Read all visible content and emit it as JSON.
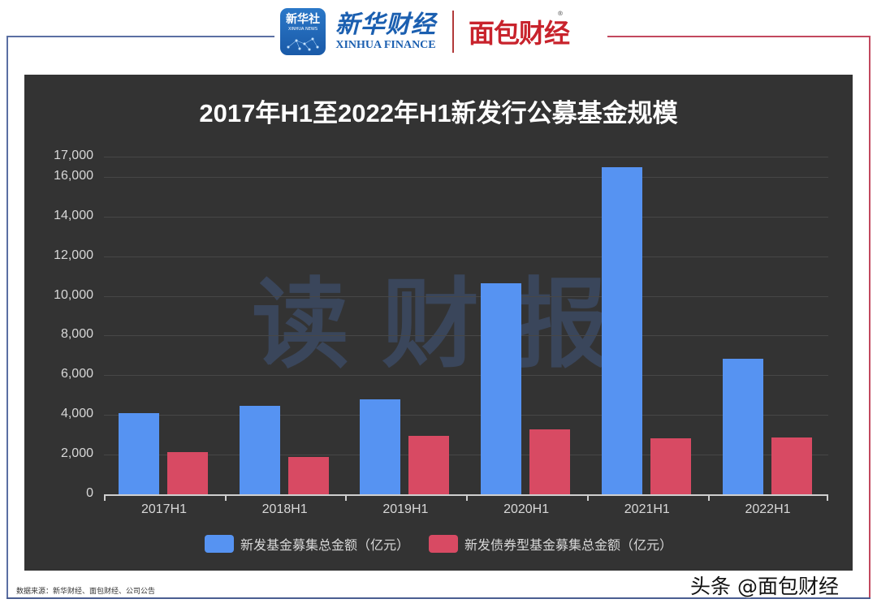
{
  "header": {
    "xinhua_icon_text": "新华社",
    "xinhua_icon_sub": "XINHUA NEWS",
    "xinhua_brand_cn": "新华财经",
    "xinhua_brand_en": "XINHUA FINANCE",
    "mianbao_brand": "面包财经",
    "mianbao_reg": "®"
  },
  "colors": {
    "panel_bg": "#333333",
    "series_blue": "#5693f2",
    "series_red": "#d84a63",
    "frame_blue": "#5b6fa3",
    "frame_red": "#c2485e"
  },
  "watermark": "读财报",
  "footer": {
    "source": "数据来源：新华财经、面包财经、公司公告",
    "toutiao": "头条 @面包财经"
  },
  "chart_data": {
    "type": "bar",
    "title": "2017年H1至2022年H1新发行公募基金规模",
    "xlabel": "",
    "ylabel": "",
    "categories": [
      "2017H1",
      "2018H1",
      "2019H1",
      "2020H1",
      "2021H1",
      "2022H1"
    ],
    "series": [
      {
        "name": "新发基金募集总金额（亿元）",
        "color": "#5693f2",
        "values": [
          4090,
          4460,
          4790,
          10630,
          16480,
          6830
        ]
      },
      {
        "name": "新发债券型基金募集总金额（亿元）",
        "color": "#d84a63",
        "values": [
          2130,
          1880,
          2940,
          3270,
          2820,
          2860
        ]
      }
    ],
    "yticks": [
      "0",
      "2,000",
      "4,000",
      "6,000",
      "8,000",
      "10,000",
      "12,000",
      "14,000",
      "16,000",
      "17,000"
    ],
    "ylim": [
      0,
      17000
    ],
    "grid": true,
    "legend_position": "bottom"
  }
}
